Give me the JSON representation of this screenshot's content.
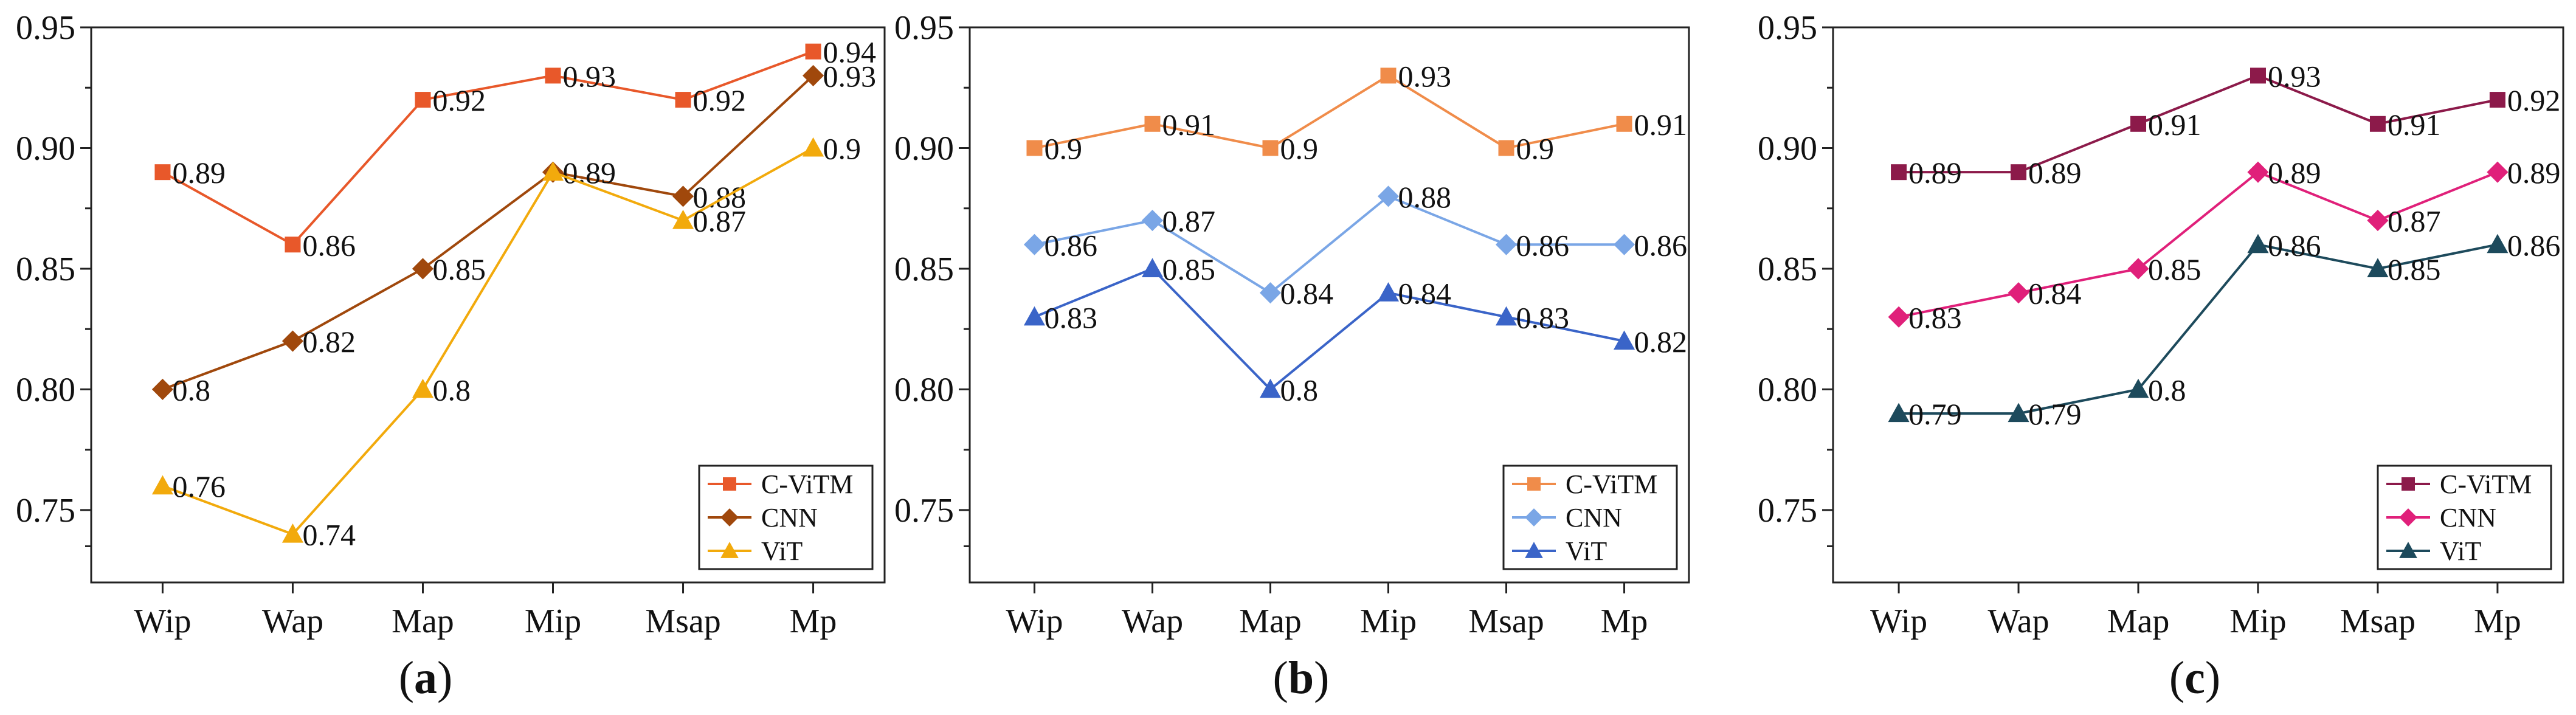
{
  "chart_data": [
    {
      "type": "line",
      "id": "a",
      "caption_prefix": "(",
      "caption_letter": "a",
      "caption_suffix": ")",
      "categories": [
        "Wip",
        "Wap",
        "Map",
        "Mip",
        "Msap",
        "Mp"
      ],
      "ylim": [
        0.72,
        0.95
      ],
      "yticks": [
        0.75,
        0.8,
        0.85,
        0.9,
        0.95
      ],
      "ytick_labels": [
        "0.75",
        "0.80",
        "0.85",
        "0.90",
        "0.95"
      ],
      "legend_position": "bottom-right",
      "series": [
        {
          "name": "C-ViTM",
          "color": "#e8582a",
          "marker": "square",
          "values": [
            0.89,
            0.86,
            0.92,
            0.93,
            0.92,
            0.94
          ],
          "labels": [
            "0.89",
            "0.86",
            "0.92",
            "0.93",
            "0.92",
            "0.94"
          ]
        },
        {
          "name": "CNN",
          "color": "#a0480c",
          "marker": "diamond",
          "values": [
            0.8,
            0.82,
            0.85,
            0.89,
            0.88,
            0.93
          ],
          "labels": [
            "0.8",
            "0.82",
            "0.85",
            "0.89",
            "0.88",
            "0.93"
          ]
        },
        {
          "name": "ViT",
          "color": "#f2aa0c",
          "marker": "triangle",
          "values": [
            0.76,
            0.74,
            0.8,
            0.89,
            0.87,
            0.9
          ],
          "labels": [
            "0.76",
            "0.74",
            "0.8",
            "",
            "0.87",
            "0.9"
          ]
        }
      ]
    },
    {
      "type": "line",
      "id": "b",
      "caption_prefix": "(",
      "caption_letter": "b",
      "caption_suffix": ")",
      "categories": [
        "Wip",
        "Wap",
        "Map",
        "Mip",
        "Msap",
        "Mp"
      ],
      "ylim": [
        0.72,
        0.95
      ],
      "yticks": [
        0.75,
        0.8,
        0.85,
        0.9,
        0.95
      ],
      "ytick_labels": [
        "0.75",
        "0.80",
        "0.85",
        "0.90",
        "0.95"
      ],
      "legend_position": "bottom-right",
      "series": [
        {
          "name": "C-ViTM",
          "color": "#f08c4a",
          "marker": "square",
          "values": [
            0.9,
            0.91,
            0.9,
            0.93,
            0.9,
            0.91
          ],
          "labels": [
            "0.9",
            "0.91",
            "0.9",
            "0.93",
            "0.9",
            "0.91"
          ]
        },
        {
          "name": "CNN",
          "color": "#7aa6e6",
          "marker": "diamond",
          "values": [
            0.86,
            0.87,
            0.84,
            0.88,
            0.86,
            0.86
          ],
          "labels": [
            "0.86",
            "0.87",
            "0.84",
            "0.88",
            "0.86",
            "0.86"
          ]
        },
        {
          "name": "ViT",
          "color": "#3a64c8",
          "marker": "triangle",
          "values": [
            0.83,
            0.85,
            0.8,
            0.84,
            0.83,
            0.82
          ],
          "labels": [
            "0.83",
            "0.85",
            "0.8",
            "0.84",
            "0.83",
            "0.82"
          ]
        }
      ]
    },
    {
      "type": "line",
      "id": "c",
      "caption_prefix": "(",
      "caption_letter": "c",
      "caption_suffix": ")",
      "categories": [
        "Wip",
        "Wap",
        "Map",
        "Mip",
        "Msap",
        "Mp"
      ],
      "ylim": [
        0.72,
        0.95
      ],
      "yticks": [
        0.75,
        0.8,
        0.85,
        0.9,
        0.95
      ],
      "ytick_labels": [
        "0.75",
        "0.80",
        "0.85",
        "0.90",
        "0.95"
      ],
      "legend_position": "bottom-right",
      "series": [
        {
          "name": "C-ViTM",
          "color": "#8c1a4a",
          "marker": "square",
          "values": [
            0.89,
            0.89,
            0.91,
            0.93,
            0.91,
            0.92
          ],
          "labels": [
            "0.89",
            "0.89",
            "0.91",
            "0.93",
            "0.91",
            "0.92"
          ]
        },
        {
          "name": "CNN",
          "color": "#e0207a",
          "marker": "diamond",
          "values": [
            0.83,
            0.84,
            0.85,
            0.89,
            0.87,
            0.89
          ],
          "labels": [
            "0.83",
            "0.84",
            "0.85",
            "0.89",
            "0.87",
            "0.89"
          ]
        },
        {
          "name": "ViT",
          "color": "#1d4a5c",
          "marker": "triangle",
          "values": [
            0.79,
            0.79,
            0.8,
            0.86,
            0.85,
            0.86
          ],
          "labels": [
            "0.79",
            "0.79",
            "0.8",
            "0.86",
            "0.85",
            "0.86"
          ]
        }
      ]
    }
  ]
}
